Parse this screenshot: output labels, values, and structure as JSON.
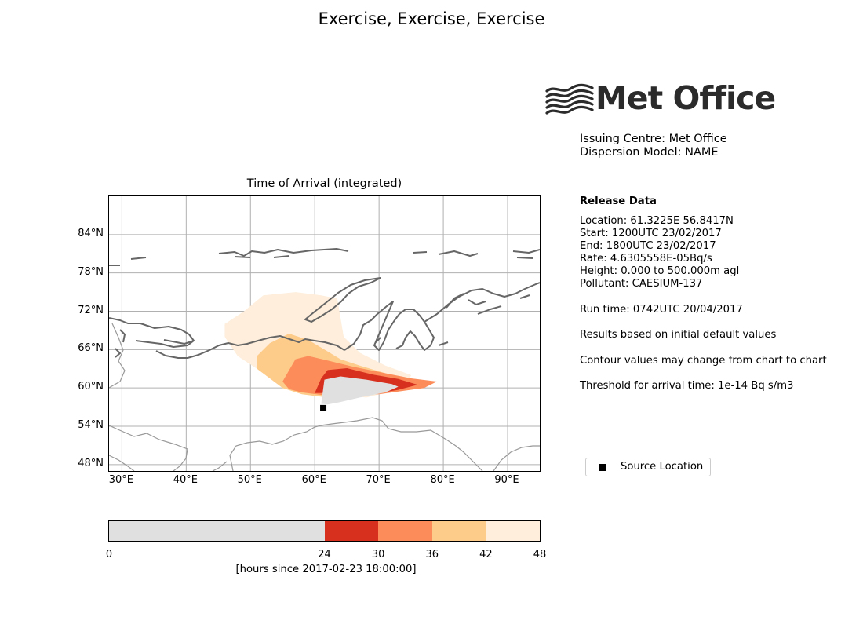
{
  "suptitle": "Exercise, Exercise, Exercise",
  "logo": {
    "text": "Met Office",
    "icon": "met-office-wave-logo"
  },
  "issuing": {
    "centre": "Issuing Centre: Met Office",
    "model": "Dispersion Model: NAME"
  },
  "release": {
    "heading": "Release Data",
    "lines": [
      "Location: 61.3225E   56.8417N",
      "Start: 1200UTC 23/02/2017",
      "End: 1800UTC 23/02/2017",
      "Rate: 4.6305558E-05Bq/s",
      "Height: 0.000 to 500.000m agl",
      "Pollutant: CAESIUM-137"
    ],
    "run_time": "Run time: 0742UTC 20/04/2017",
    "note1": "Results based on initial default values",
    "note2": "Contour values may change from chart to chart",
    "threshold": "Threshold for arrival time: 1e-14 Bq s/m3"
  },
  "map": {
    "title": "Time of Arrival (integrated)",
    "lon_range": [
      28,
      95
    ],
    "lat_range": [
      47,
      90
    ],
    "x_ticks": [
      {
        "value": 30,
        "label": "30°E"
      },
      {
        "value": 40,
        "label": "40°E"
      },
      {
        "value": 50,
        "label": "50°E"
      },
      {
        "value": 60,
        "label": "60°E"
      },
      {
        "value": 70,
        "label": "70°E"
      },
      {
        "value": 80,
        "label": "80°E"
      },
      {
        "value": 90,
        "label": "90°E"
      }
    ],
    "y_ticks": [
      {
        "value": 48,
        "label": "48°N"
      },
      {
        "value": 54,
        "label": "54°N"
      },
      {
        "value": 60,
        "label": "60°N"
      },
      {
        "value": 66,
        "label": "66°N"
      },
      {
        "value": 72,
        "label": "72°N"
      },
      {
        "value": 78,
        "label": "78°N"
      },
      {
        "value": 84,
        "label": "84°N"
      }
    ],
    "grid": true,
    "source": {
      "lon": 61.3225,
      "lat": 56.8417
    },
    "arrival_zones": [
      {
        "band": "42-48",
        "color": "#feeedb",
        "points": [
          [
            46,
            70
          ],
          [
            49,
            72
          ],
          [
            52,
            74.5
          ],
          [
            57,
            75
          ],
          [
            61,
            74.5
          ],
          [
            63.5,
            74
          ],
          [
            64,
            71
          ],
          [
            64.5,
            68
          ],
          [
            67,
            65.5
          ],
          [
            71,
            63.5
          ],
          [
            75,
            62
          ],
          [
            74,
            60
          ],
          [
            68,
            58.5
          ],
          [
            58,
            59.5
          ],
          [
            55,
            61
          ],
          [
            51,
            63
          ],
          [
            48,
            65
          ],
          [
            46,
            68
          ]
        ]
      },
      {
        "band": "36-42",
        "color": "#fdcb8a",
        "points": [
          [
            51,
            65
          ],
          [
            53,
            67
          ],
          [
            56,
            68.5
          ],
          [
            59,
            67.5
          ],
          [
            61.5,
            66
          ],
          [
            64,
            64.5
          ],
          [
            67,
            63.5
          ],
          [
            72,
            62
          ],
          [
            74,
            60.5
          ],
          [
            69,
            59.5
          ],
          [
            62,
            58.5
          ],
          [
            58,
            59
          ],
          [
            55,
            60
          ],
          [
            53,
            61.5
          ],
          [
            51,
            63
          ]
        ]
      },
      {
        "band": "30-36",
        "color": "#fc8c59",
        "points": [
          [
            55,
            61
          ],
          [
            57,
            64.5
          ],
          [
            59,
            65
          ],
          [
            62,
            64.3
          ],
          [
            66,
            63.3
          ],
          [
            71,
            62.3
          ],
          [
            75,
            61.5
          ],
          [
            79,
            61
          ],
          [
            77,
            60
          ],
          [
            70,
            59
          ],
          [
            62,
            58.8
          ],
          [
            58,
            59.3
          ],
          [
            56,
            59.8
          ]
        ]
      },
      {
        "band": "24-30",
        "color": "#d7301f",
        "points": [
          [
            60,
            59.2
          ],
          [
            61,
            61.5
          ],
          [
            62,
            62.8
          ],
          [
            65,
            63.1
          ],
          [
            69,
            62.1
          ],
          [
            73,
            61.4
          ],
          [
            76,
            60.5
          ],
          [
            73,
            59.7
          ],
          [
            70,
            59.2
          ],
          [
            63,
            59.2
          ]
        ]
      },
      {
        "band": "0-24",
        "color": "#e0e0e0",
        "points": [
          [
            61,
            57.5
          ],
          [
            61.5,
            61.3
          ],
          [
            64,
            61.8
          ],
          [
            68,
            61.3
          ],
          [
            72,
            60.6
          ],
          [
            73,
            60.2
          ],
          [
            71,
            59.3
          ],
          [
            67,
            58.5
          ],
          [
            64,
            57.8
          ],
          [
            62,
            57.4
          ]
        ]
      }
    ]
  },
  "legend": {
    "label": "Source Location"
  },
  "colorbar": {
    "bounds": [
      0,
      24,
      30,
      36,
      42,
      48
    ],
    "bins": [
      {
        "from": 0,
        "to": 24,
        "color": "#e0e0e0"
      },
      {
        "from": 24,
        "to": 30,
        "color": "#d7301f"
      },
      {
        "from": 30,
        "to": 36,
        "color": "#fc8c59"
      },
      {
        "from": 36,
        "to": 42,
        "color": "#fdcb8a"
      },
      {
        "from": 42,
        "to": 48,
        "color": "#feeedb"
      }
    ],
    "tick_labels": [
      "0",
      "24",
      "30",
      "36",
      "42",
      "48"
    ],
    "label": "[hours since 2017-02-23 18:00:00]"
  }
}
